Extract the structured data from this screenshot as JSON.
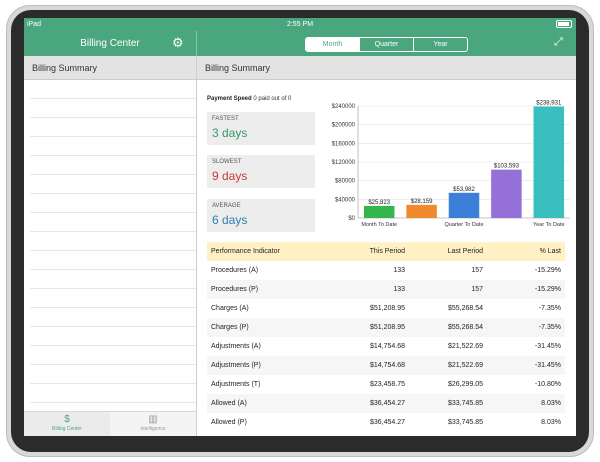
{
  "status_bar": {
    "device": "iPad",
    "time": "2:55 PM"
  },
  "left_panel": {
    "title": "Billing Center",
    "subheader": "Billing Summary"
  },
  "segments": [
    {
      "label": "Month",
      "selected": true
    },
    {
      "label": "Quarter",
      "selected": false
    },
    {
      "label": "Year",
      "selected": false
    }
  ],
  "right_panel": {
    "subheader": "Billing Summary"
  },
  "payment_speed": {
    "title": "Payment Speed",
    "subtitle": "0 paid out of 0",
    "cards": [
      {
        "label": "FASTEST",
        "value": "3 days",
        "color": "#3a9a6a"
      },
      {
        "label": "SLOWEST",
        "value": "9 days",
        "color": "#c93a3a"
      },
      {
        "label": "AVERAGE",
        "value": "6 days",
        "color": "#2a7fb0"
      }
    ]
  },
  "chart_data": {
    "type": "bar",
    "categories": [
      "Month To Date",
      "",
      "Quarter To Date",
      "",
      "Year To Date"
    ],
    "values": [
      25823,
      28159,
      53982,
      103593,
      238931
    ],
    "data_labels": [
      "$25,823",
      "$28,159",
      "$53,982",
      "$103,593",
      "$238,931"
    ],
    "colors": [
      "#33b64c",
      "#f08a2c",
      "#3c7fd9",
      "#9670d9",
      "#3abfbe"
    ],
    "ylim": [
      0,
      240000
    ],
    "yticks": [
      0,
      40000,
      80000,
      120000,
      160000,
      200000,
      240000
    ],
    "ytick_labels": [
      "$0",
      "$40000",
      "$80000",
      "$120000",
      "$160000",
      "$200000",
      "$240000"
    ],
    "grid": true
  },
  "table": {
    "headers": [
      "Performance Indicator",
      "This Period",
      "Last Period",
      "% Last"
    ],
    "rows": [
      [
        "Procedures (A)",
        "133",
        "157",
        "-15.29%"
      ],
      [
        "Procedures (P)",
        "133",
        "157",
        "-15.29%"
      ],
      [
        "Charges (A)",
        "$51,208.95",
        "$55,268.54",
        "-7.35%"
      ],
      [
        "Charges (P)",
        "$51,208.95",
        "$55,268.54",
        "-7.35%"
      ],
      [
        "Adjustments (A)",
        "$14,754.68",
        "$21,522.69",
        "-31.45%"
      ],
      [
        "Adjustments (P)",
        "$14,754.68",
        "$21,522.69",
        "-31.45%"
      ],
      [
        "Adjustments (T)",
        "$23,458.75",
        "$26,299.05",
        "-10.80%"
      ],
      [
        "Allowed (A)",
        "$36,454.27",
        "$33,745.85",
        "8.03%"
      ],
      [
        "Allowed (P)",
        "$36,454.27",
        "$33,745.85",
        "8.03%"
      ]
    ]
  },
  "tabs": [
    {
      "label": "Billing Center",
      "icon": "dollar-circle-icon",
      "active": true
    },
    {
      "label": "Intelligence",
      "icon": "bar-chart-icon",
      "active": false
    }
  ],
  "colors": {
    "brand": "#4aa67c",
    "table_header": "#fff1c4"
  }
}
